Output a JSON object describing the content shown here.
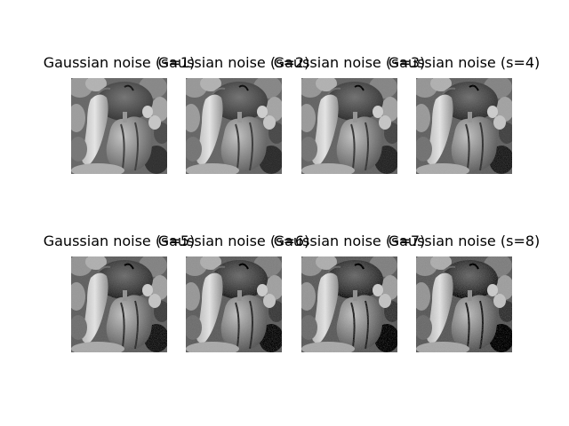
{
  "figure": {
    "background": "#ffffff",
    "image_subject": "peppers-grayscale",
    "subplots": [
      {
        "title": "Gaussian noise (s=1)",
        "noise_std": 1
      },
      {
        "title": "Gaussian noise (s=2)",
        "noise_std": 2
      },
      {
        "title": "Gaussian noise (s=3)",
        "noise_std": 3
      },
      {
        "title": "Gaussian noise (s=4)",
        "noise_std": 4
      },
      {
        "title": "Gaussian noise (s=5)",
        "noise_std": 5
      },
      {
        "title": "Gaussian noise (s=6)",
        "noise_std": 6
      },
      {
        "title": "Gaussian noise (s=7)",
        "noise_std": 7
      },
      {
        "title": "Gaussian noise (s=8)",
        "noise_std": 8
      }
    ]
  }
}
